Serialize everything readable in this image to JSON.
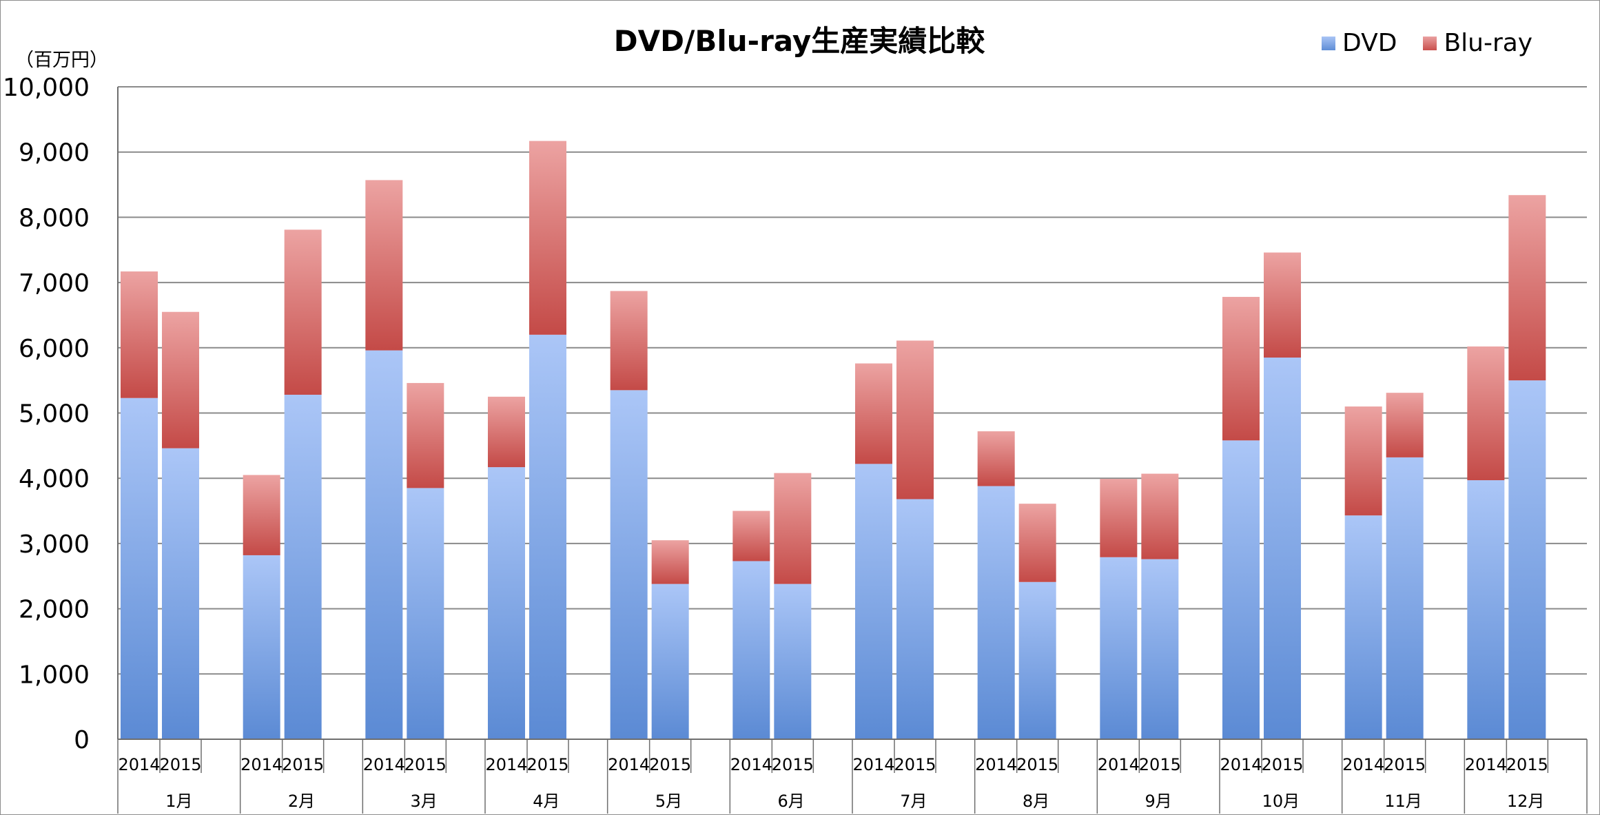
{
  "chart_data": {
    "type": "bar",
    "stacked": true,
    "title": "DVD/Blu-ray生産実績比較",
    "unit_label": "（百万円）",
    "ylim": [
      0,
      10000
    ],
    "y_ticks": [
      "0",
      "1,000",
      "2,000",
      "3,000",
      "4,000",
      "5,000",
      "6,000",
      "7,000",
      "8,000",
      "9,000",
      "10,000"
    ],
    "grid": true,
    "legend_position": "top-right",
    "groups": [
      "1月",
      "2月",
      "3月",
      "4月",
      "5月",
      "6月",
      "7月",
      "8月",
      "9月",
      "10月",
      "11月",
      "12月"
    ],
    "years": [
      "2014",
      "2015"
    ],
    "series": [
      {
        "name": "DVD",
        "color": "#7aa2e6",
        "values": [
          [
            5230,
            4460
          ],
          [
            2820,
            5280
          ],
          [
            5960,
            3850
          ],
          [
            4170,
            6200
          ],
          [
            5350,
            2380
          ],
          [
            2730,
            2380
          ],
          [
            4220,
            3680
          ],
          [
            3880,
            2410
          ],
          [
            2790,
            2760
          ],
          [
            4580,
            5850
          ],
          [
            3430,
            4320
          ],
          [
            3970,
            5500
          ]
        ]
      },
      {
        "name": "Blu-ray",
        "color": "#d46a67",
        "values": [
          [
            1940,
            2090
          ],
          [
            1230,
            2530
          ],
          [
            2610,
            1610
          ],
          [
            1080,
            2970
          ],
          [
            1520,
            670
          ],
          [
            770,
            1700
          ],
          [
            1540,
            2430
          ],
          [
            840,
            1200
          ],
          [
            1200,
            1310
          ],
          [
            2200,
            1610
          ],
          [
            1670,
            990
          ],
          [
            2050,
            2840
          ]
        ]
      }
    ]
  }
}
